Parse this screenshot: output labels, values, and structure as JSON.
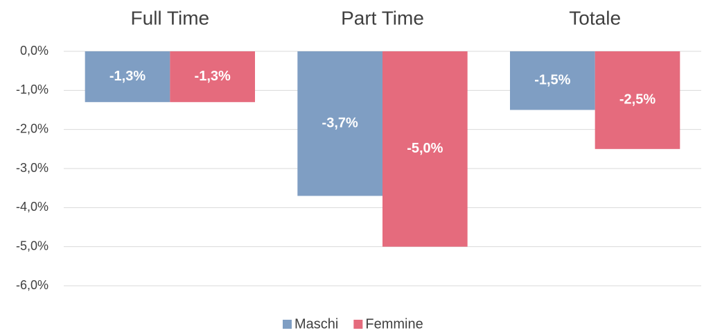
{
  "chart_data": {
    "type": "bar",
    "categories": [
      "Full Time",
      "Part Time",
      "Totale"
    ],
    "series": [
      {
        "name": "Maschi",
        "color": "#7f9ec3",
        "values": [
          -1.3,
          -3.7,
          -1.5
        ],
        "value_labels": [
          "-1,3%",
          "-3,7%",
          "-1,5%"
        ]
      },
      {
        "name": "Femmine",
        "color": "#e56b7d",
        "values": [
          -1.3,
          -5.0,
          -2.5
        ],
        "value_labels": [
          "-1,3%",
          "-5,0%",
          "-2,5%"
        ]
      }
    ],
    "ylim": [
      -6,
      0
    ],
    "yticks": [
      {
        "value": 0,
        "label": "0,0%"
      },
      {
        "value": -1,
        "label": "-1,0%"
      },
      {
        "value": -2,
        "label": "-2,0%"
      },
      {
        "value": -3,
        "label": "-3,0%"
      },
      {
        "value": -4,
        "label": "-4,0%"
      },
      {
        "value": -5,
        "label": "-5,0%"
      },
      {
        "value": -6,
        "label": "-6,0%"
      }
    ],
    "grid": true,
    "legend": "bottom"
  }
}
